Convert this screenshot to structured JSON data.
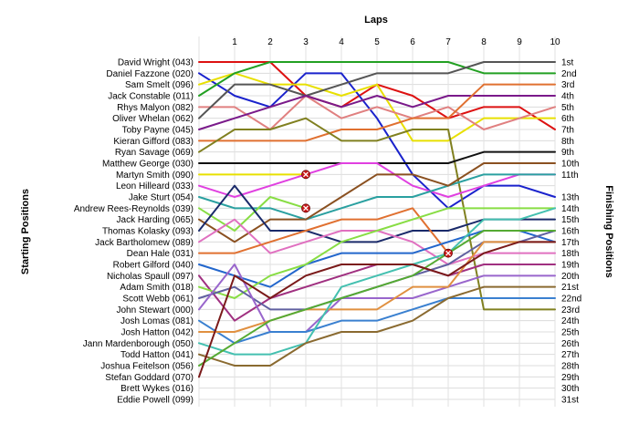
{
  "chart_data": {
    "type": "line",
    "xlabel": "Laps",
    "ylabel_left": "Starting Positions",
    "ylabel_right": "Finishing Positions",
    "x": [
      1,
      2,
      3,
      4,
      5,
      6,
      7,
      8,
      9,
      10
    ],
    "y_range": [
      1,
      31
    ],
    "y_inverted": true,
    "grid": true,
    "starting_labels": [
      "David Wright (043)",
      "Daniel Fazzone (020)",
      "Sam Smelt (096)",
      "Jack Constable (011)",
      "Rhys Malyon (082)",
      "Oliver Whelan (062)",
      "Toby Payne (045)",
      "Kieran Gifford (083)",
      "Ryan Savage (069)",
      "Matthew George (030)",
      "Martyn Smith (090)",
      "Leon Hilleard (033)",
      "Jake Sturt (054)",
      "Andrew Rees-Reynolds (039)",
      "Jack Harding (065)",
      "Thomas Kolasky (093)",
      "Jack Bartholomew (089)",
      "Dean Hale (031)",
      "Robert Gilford (040)",
      "Nicholas Spaull (097)",
      "Adam Smith (018)",
      "Scott Webb (061)",
      "John Stewart (000)",
      "Josh Lomas (081)",
      "Josh Hatton (042)",
      "Jann Mardenborough (050)",
      "Todd Hatton (041)",
      "Joshua Feitelson (056)",
      "Stefan Goddard (070)",
      "Brett Wykes (016)",
      "Eddie Powell (099)"
    ],
    "finishing_labels": [
      "1st",
      "2nd",
      "3rd",
      "4th",
      "5th",
      "6th",
      "7th",
      "8th",
      "9th",
      "10th",
      "11th",
      "13th",
      "14th",
      "15th",
      "16th",
      "17th",
      "18th",
      "19th",
      "20th",
      "21st",
      "22nd",
      "23rd",
      "24th",
      "25th",
      "26th",
      "27th",
      "28th",
      "29th",
      "30th",
      "31st"
    ],
    "finishing_positions": [
      1,
      2,
      3,
      4,
      5,
      6,
      7,
      8,
      9,
      10,
      11,
      13,
      14,
      15,
      16,
      17,
      18,
      19,
      20,
      21,
      22,
      23,
      24,
      25,
      26,
      27,
      28,
      29,
      30,
      31
    ],
    "retirement_marker": "x",
    "series": [
      {
        "start": 1,
        "positions": [
          1,
          1,
          4,
          5,
          3,
          4,
          6,
          5,
          5,
          7
        ],
        "color": "#dd1111"
      },
      {
        "start": 2,
        "positions": [
          4,
          5,
          2,
          2,
          6,
          11,
          14,
          12,
          12,
          13
        ],
        "color": "#1a22cc"
      },
      {
        "start": 3,
        "positions": [
          2,
          3,
          3,
          4,
          3,
          8,
          8,
          6,
          6,
          6
        ],
        "color": "#e8e000"
      },
      {
        "start": 4,
        "positions": [
          2,
          1,
          1,
          1,
          1,
          1,
          1,
          2,
          2,
          2
        ],
        "color": "#22a022"
      },
      {
        "start": 5,
        "positions": [
          5,
          7,
          4,
          6,
          5,
          6,
          5,
          7,
          6,
          5
        ],
        "color": "#e08080"
      },
      {
        "start": 6,
        "positions": [
          3,
          3,
          4,
          3,
          2,
          2,
          2,
          1,
          1,
          1
        ],
        "color": "#555555"
      },
      {
        "start": 7,
        "positions": [
          6,
          5,
          4,
          5,
          4,
          5,
          4,
          4,
          4,
          4
        ],
        "color": "#7a1a8a"
      },
      {
        "start": 8,
        "positions": [
          8,
          8,
          8,
          7,
          7,
          6,
          6,
          3,
          3,
          3
        ],
        "color": "#e07030"
      },
      {
        "start": 9,
        "positions": [
          7,
          7,
          6,
          8,
          8,
          7,
          7,
          23,
          23,
          23
        ],
        "color": "#808020"
      },
      {
        "start": 10,
        "positions": [
          10,
          10,
          10,
          10,
          10,
          10,
          10,
          9,
          9,
          9
        ],
        "color": "#111111"
      },
      {
        "start": 11,
        "positions": [
          11,
          11,
          11
        ],
        "color": "#e8e000",
        "retired_at": 3
      },
      {
        "start": 12,
        "positions": [
          13,
          12,
          11,
          10,
          10,
          12,
          13,
          12,
          11,
          11
        ],
        "color": "#e040e0"
      },
      {
        "start": 13,
        "positions": [
          14,
          14,
          15,
          14,
          13,
          13,
          12,
          11,
          11,
          11
        ],
        "color": "#2aa0a0"
      },
      {
        "start": 14,
        "positions": [
          16,
          13,
          14
        ],
        "color": "#88dd44",
        "retired_at": 3
      },
      {
        "start": 15,
        "positions": [
          17,
          15,
          15,
          13,
          11,
          11,
          12,
          10,
          10,
          10
        ],
        "color": "#8a5020"
      },
      {
        "start": 16,
        "positions": [
          12,
          16,
          16,
          17,
          17,
          16,
          16,
          15,
          15,
          15
        ],
        "color": "#1a2a6a"
      },
      {
        "start": 17,
        "positions": [
          15,
          18,
          17,
          16,
          16,
          17,
          19,
          18,
          18,
          18
        ],
        "color": "#e070c0"
      },
      {
        "start": 18,
        "positions": [
          18,
          17,
          16,
          15,
          15,
          14,
          18
        ],
        "color": "#e07030",
        "retired_at": 7
      },
      {
        "start": 19,
        "positions": [
          20,
          21,
          19,
          18,
          18,
          18,
          17,
          16,
          16,
          17
        ],
        "color": "#2266cc"
      },
      {
        "start": 20,
        "positions": [
          24,
          22,
          21,
          20,
          19,
          19,
          20,
          19,
          19,
          19
        ],
        "color": "#a03080"
      },
      {
        "start": 21,
        "positions": [
          22,
          20,
          19,
          17,
          16,
          15,
          14,
          14,
          14,
          14
        ],
        "color": "#88dd44"
      },
      {
        "start": 22,
        "positions": [
          21,
          23,
          23,
          22,
          21,
          20,
          19,
          17,
          17,
          16
        ],
        "color": "#6060a0"
      },
      {
        "start": 23,
        "positions": [
          19,
          25,
          25,
          22,
          22,
          22,
          21,
          20,
          20,
          20
        ],
        "color": "#9966cc"
      },
      {
        "start": 24,
        "positions": [
          26,
          25,
          25,
          24,
          24,
          23,
          22,
          22,
          22,
          22
        ],
        "color": "#3a80d0"
      },
      {
        "start": 25,
        "positions": [
          25,
          24,
          23,
          23,
          23,
          21,
          21,
          17,
          17,
          17
        ],
        "color": "#e09040"
      },
      {
        "start": 26,
        "positions": [
          27,
          27,
          26,
          21,
          20,
          19,
          18,
          15,
          15,
          14
        ],
        "color": "#44c0b0"
      },
      {
        "start": 27,
        "positions": [
          28,
          28,
          26,
          25,
          25,
          24,
          22,
          21,
          21,
          21
        ],
        "color": "#8a6a30"
      },
      {
        "start": 28,
        "positions": [
          26,
          24,
          23,
          22,
          21,
          20,
          18,
          16,
          16,
          16
        ],
        "color": "#55aa33"
      },
      {
        "start": 29,
        "positions": [
          20,
          22,
          20,
          19,
          19,
          19,
          20,
          18,
          17,
          17
        ],
        "color": "#7a1a1a"
      }
    ]
  }
}
